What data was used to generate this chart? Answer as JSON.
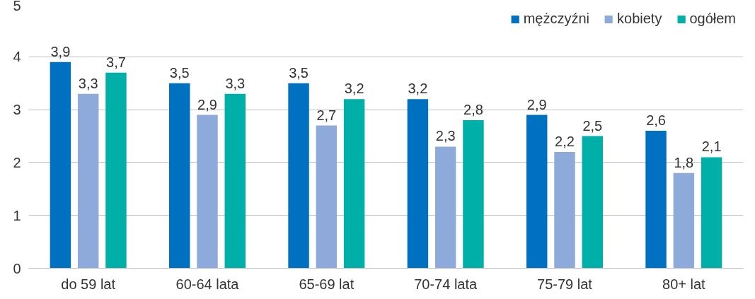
{
  "chart_data": {
    "type": "bar",
    "categories": [
      "do 59 lat",
      "60-64 lata",
      "65-69 lat",
      "70-74 lata",
      "75-79 lat",
      "80+ lat"
    ],
    "series": [
      {
        "name": "mężczyźni",
        "color": "#0070c0",
        "values": [
          3.9,
          3.5,
          3.5,
          3.2,
          2.9,
          2.6
        ],
        "value_labels": [
          "3,9",
          "3,5",
          "3,5",
          "3,2",
          "2,9",
          "2,6"
        ]
      },
      {
        "name": "kobiety",
        "color": "#8eaadb",
        "values": [
          3.3,
          2.9,
          2.7,
          2.3,
          2.2,
          1.8
        ],
        "value_labels": [
          "3,3",
          "2,9",
          "2,7",
          "2,3",
          "2,2",
          "1,8"
        ]
      },
      {
        "name": "ogółem",
        "color": "#00b0a8",
        "values": [
          3.7,
          3.3,
          3.2,
          2.8,
          2.5,
          2.1
        ],
        "value_labels": [
          "3,7",
          "3,3",
          "3,2",
          "2,8",
          "2,5",
          "2,1"
        ]
      }
    ],
    "ylim": [
      0,
      5
    ],
    "yticks": [
      0,
      1,
      2,
      3,
      4,
      5
    ],
    "grid": "y",
    "legend": "top right"
  }
}
